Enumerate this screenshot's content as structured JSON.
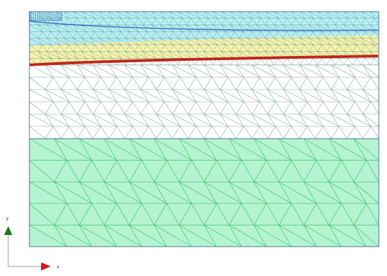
{
  "axes": {
    "x_label": "x",
    "y_label": "y",
    "x_arrow_color": "#e01010",
    "y_arrow_color": "#1a7a1a"
  },
  "layers": {
    "top_soil_fill": "#b8eef2",
    "sand_fill": "#f8f1a8",
    "middle_fill": "#ffffff",
    "bottom_fill": "#b4f4d0",
    "upper_mesh_color": "#5f9fa0",
    "middle_mesh_color": "#7fa093",
    "bottom_mesh_color": "#3fbf70",
    "anchor_line_color": "#c0281c",
    "water_line_color": "#2f6fbf",
    "frame_color": "#4a6fa5"
  }
}
